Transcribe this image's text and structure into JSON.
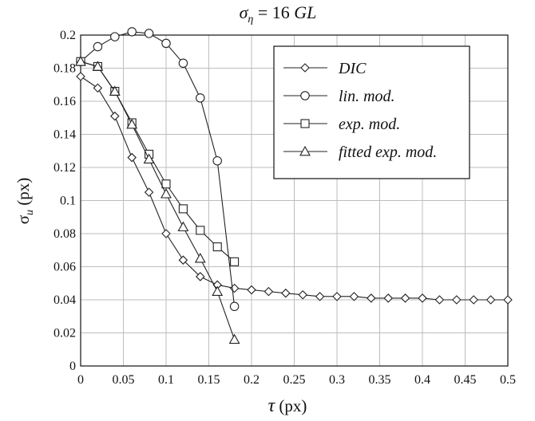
{
  "chart_data": {
    "type": "line",
    "title_prefix": "σ",
    "title_sub": "η",
    "title_mid": " = 16 ",
    "title_unit": "GL",
    "xlabel_sym": "τ",
    "xlabel_unit": " (px)",
    "ylabel_sym": "σ",
    "ylabel_sub": "u",
    "ylabel_unit": " (px)",
    "xlim": [
      0,
      0.5
    ],
    "ylim": [
      0,
      0.2
    ],
    "xticks": [
      0,
      0.05,
      0.1,
      0.15,
      0.2,
      0.25,
      0.3,
      0.35,
      0.4,
      0.45,
      0.5
    ],
    "xtick_labels": [
      "0",
      "0.05",
      "0.1",
      "0.15",
      "0.2",
      "0.25",
      "0.3",
      "0.35",
      "0.4",
      "0.45",
      "0.5"
    ],
    "yticks": [
      0,
      0.02,
      0.04,
      0.06,
      0.08,
      0.1,
      0.12,
      0.14,
      0.16,
      0.18,
      0.2
    ],
    "ytick_labels": [
      "0",
      "0.02",
      "0.04",
      "0.06",
      "0.08",
      "0.1",
      "0.12",
      "0.14",
      "0.16",
      "0.18",
      "0.2"
    ],
    "grid": true,
    "legend_position": "top-right",
    "series": [
      {
        "name": "DIC",
        "marker": "diamond",
        "x": [
          0,
          0.02,
          0.04,
          0.06,
          0.08,
          0.1,
          0.12,
          0.14,
          0.16,
          0.18,
          0.2,
          0.22,
          0.24,
          0.26,
          0.28,
          0.3,
          0.32,
          0.34,
          0.36,
          0.38,
          0.4,
          0.42,
          0.44,
          0.46,
          0.48,
          0.5
        ],
        "y": [
          0.175,
          0.168,
          0.151,
          0.126,
          0.105,
          0.08,
          0.064,
          0.054,
          0.049,
          0.047,
          0.046,
          0.045,
          0.044,
          0.043,
          0.042,
          0.042,
          0.042,
          0.041,
          0.041,
          0.041,
          0.041,
          0.04,
          0.04,
          0.04,
          0.04,
          0.04
        ]
      },
      {
        "name": "lin. mod.",
        "marker": "circle",
        "x": [
          0,
          0.02,
          0.04,
          0.06,
          0.08,
          0.1,
          0.12,
          0.14,
          0.16,
          0.18
        ],
        "y": [
          0.184,
          0.193,
          0.199,
          0.202,
          0.201,
          0.195,
          0.183,
          0.162,
          0.124,
          0.036
        ]
      },
      {
        "name": "exp. mod.",
        "marker": "square",
        "x": [
          0,
          0.02,
          0.04,
          0.06,
          0.08,
          0.1,
          0.12,
          0.14,
          0.16,
          0.18
        ],
        "y": [
          0.184,
          0.181,
          0.166,
          0.147,
          0.128,
          0.11,
          0.095,
          0.082,
          0.072,
          0.063
        ]
      },
      {
        "name": "fitted exp. mod.",
        "marker": "triangle",
        "x": [
          0,
          0.02,
          0.04,
          0.06,
          0.08,
          0.1,
          0.12,
          0.14,
          0.16,
          0.18
        ],
        "y": [
          0.184,
          0.181,
          0.166,
          0.146,
          0.125,
          0.104,
          0.084,
          0.065,
          0.045,
          0.016
        ]
      }
    ]
  }
}
